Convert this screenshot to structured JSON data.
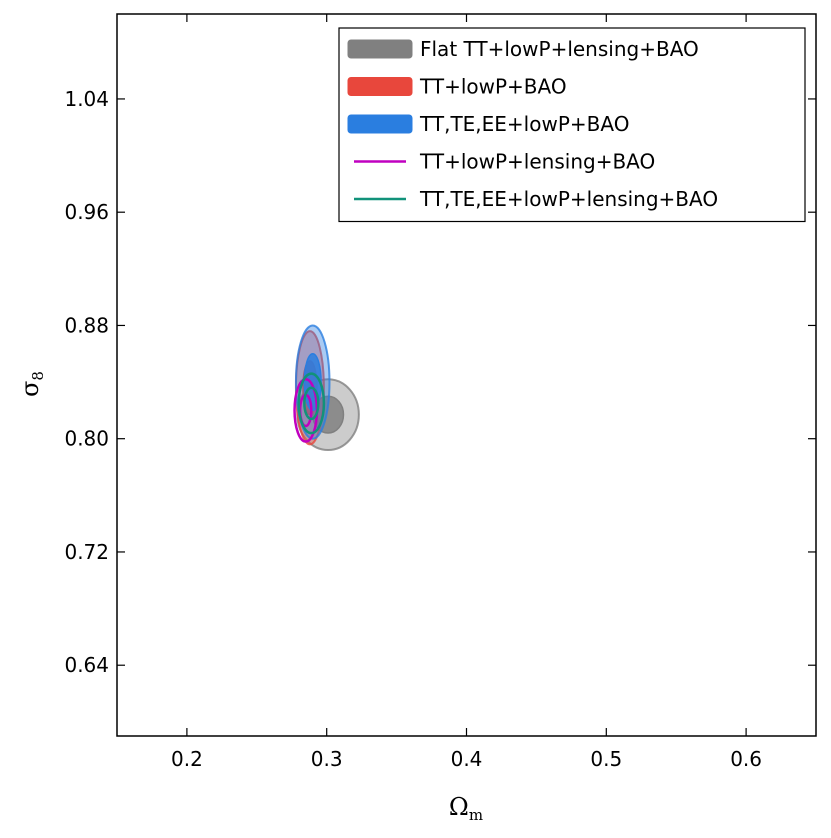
{
  "chart_data": {
    "type": "contour",
    "title": "",
    "xlabel": "Ωm",
    "ylabel": "σ8",
    "xlim": [
      0.15,
      0.65
    ],
    "ylim": [
      0.59,
      1.1
    ],
    "xticks": [
      0.2,
      0.3,
      0.4,
      0.5,
      0.6
    ],
    "xtick_labels": [
      "0.2",
      "0.3",
      "0.4",
      "0.5",
      "0.6"
    ],
    "yticks": [
      0.64,
      0.72,
      0.8,
      0.88,
      0.96,
      1.04
    ],
    "ytick_labels": [
      "0.64",
      "0.72",
      "0.80",
      "0.88",
      "0.96",
      "1.04"
    ],
    "legend_position": "top-right",
    "series": [
      {
        "name": "Flat TT+lowP+lensing+BAO",
        "style": "filled",
        "color": "#808080",
        "center": [
          0.301,
          0.817
        ],
        "sigma_outer": [
          0.022,
          0.025
        ],
        "sigma_inner": [
          0.011,
          0.013
        ]
      },
      {
        "name": "TT+lowP+BAO",
        "style": "filled",
        "color": "#e8473c",
        "center": [
          0.288,
          0.836
        ],
        "sigma_outer": [
          0.01,
          0.04
        ],
        "sigma_inner": [
          0.005,
          0.019
        ]
      },
      {
        "name": "TT,TE,EE+lowP+BAO",
        "style": "filled",
        "color": "#2a7ee0",
        "center": [
          0.29,
          0.84
        ],
        "sigma_outer": [
          0.012,
          0.04
        ],
        "sigma_inner": [
          0.006,
          0.02
        ]
      },
      {
        "name": "TT+lowP+lensing+BAO",
        "style": "line",
        "color": "#c000c0",
        "center": [
          0.285,
          0.82
        ],
        "sigma_outer": [
          0.008,
          0.022
        ],
        "sigma_inner": [
          0.004,
          0.011
        ]
      },
      {
        "name": "TT,TE,EE+lowP+lensing+BAO",
        "style": "line",
        "color": "#11927a",
        "center": [
          0.289,
          0.825
        ],
        "sigma_outer": [
          0.009,
          0.021
        ],
        "sigma_inner": [
          0.005,
          0.011
        ]
      }
    ]
  }
}
